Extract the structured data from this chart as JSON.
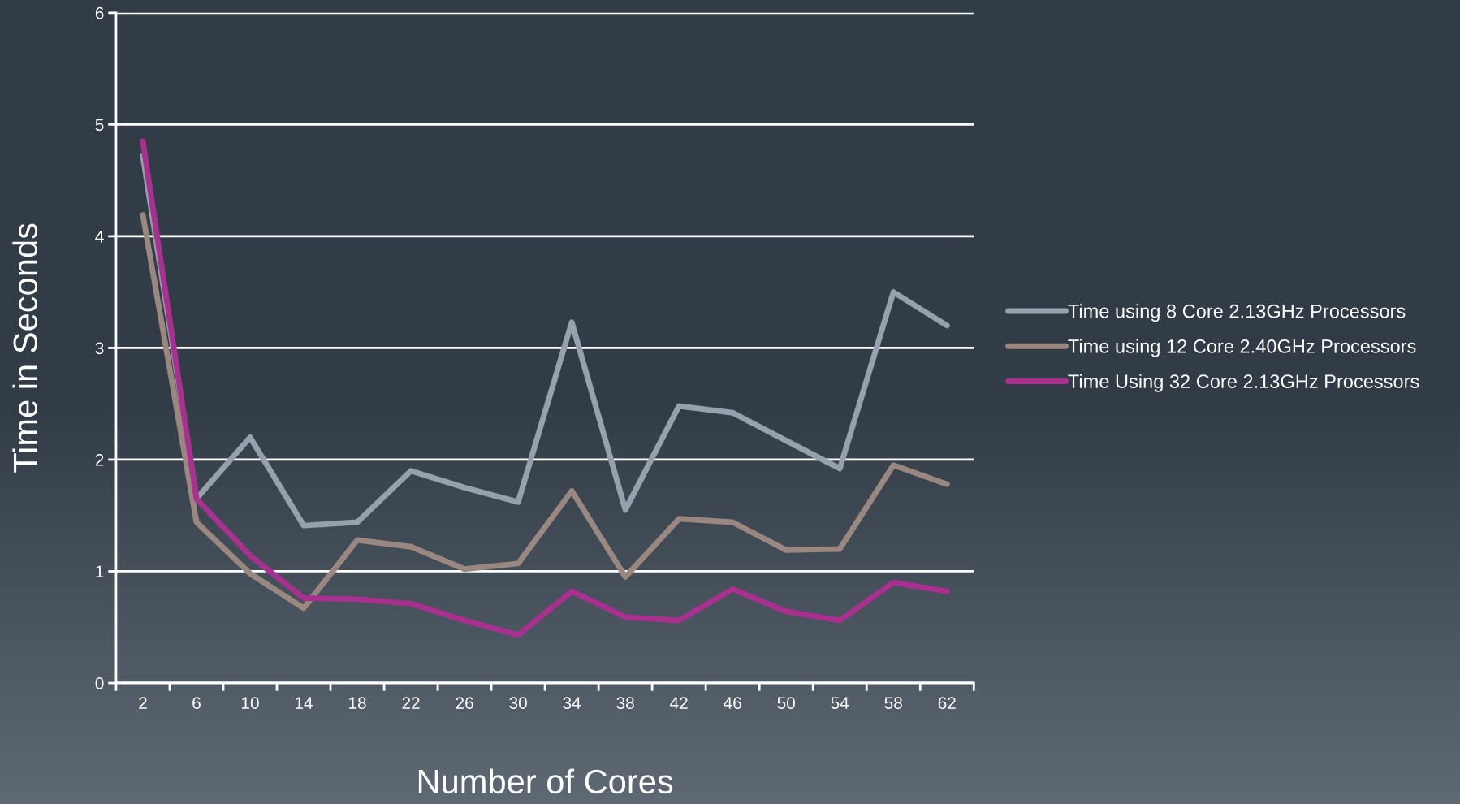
{
  "chart_data": {
    "type": "line",
    "xlabel": "Number of Cores",
    "ylabel": "Time in Seconds",
    "categories": [
      "2",
      "6",
      "10",
      "14",
      "18",
      "22",
      "26",
      "30",
      "34",
      "38",
      "42",
      "46",
      "50",
      "54",
      "58",
      "62"
    ],
    "series": [
      {
        "name": "Time using 8 Core 2.13GHz Processors",
        "color": "#95a1ad",
        "values": [
          4.72,
          1.65,
          2.2,
          1.41,
          1.44,
          1.9,
          1.75,
          1.62,
          3.23,
          1.55,
          2.48,
          2.42,
          2.17,
          1.92,
          3.5,
          3.2
        ]
      },
      {
        "name": "Time using 12 Core 2.40GHz Processors",
        "color": "#9a8880",
        "values": [
          4.19,
          1.44,
          0.98,
          0.67,
          1.28,
          1.22,
          1.02,
          1.07,
          1.72,
          0.95,
          1.47,
          1.44,
          1.19,
          1.2,
          1.95,
          1.78
        ]
      },
      {
        "name": "Time Using 32 Core 2.13GHz Processors",
        "color": "#a8308f",
        "values": [
          4.85,
          1.65,
          1.14,
          0.76,
          0.75,
          0.71,
          0.56,
          0.43,
          0.82,
          0.59,
          0.56,
          0.84,
          0.64,
          0.56,
          0.9,
          0.82
        ]
      }
    ],
    "ylim": [
      0,
      6
    ],
    "yticks": [
      0,
      1,
      2,
      3,
      4,
      5,
      6
    ],
    "grid": "y",
    "legend": "right",
    "marker": "none",
    "line_style": "solid"
  }
}
